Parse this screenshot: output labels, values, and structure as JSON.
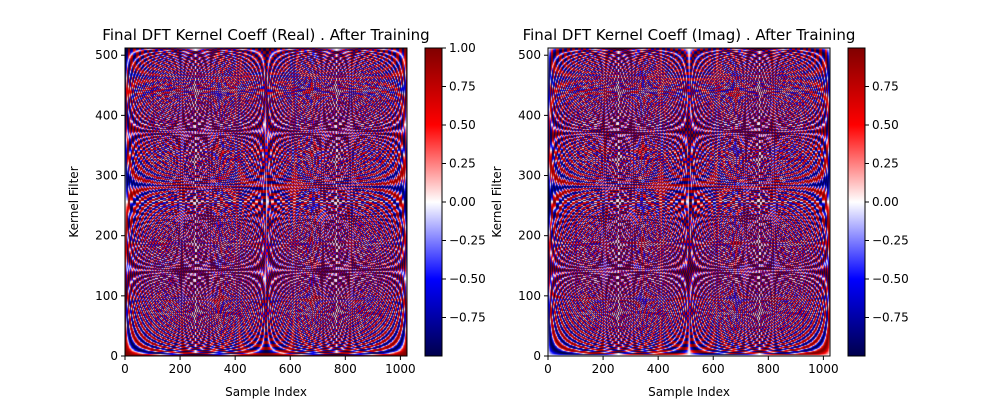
{
  "chart_data": [
    {
      "type": "heatmap",
      "title": "Final DFT Kernel Coeff (Real) . After Training",
      "xlabel": "Sample Index",
      "ylabel": "Kernel Filter",
      "xlim": [
        0,
        1024
      ],
      "ylim": [
        0,
        512
      ],
      "x_ticks": [
        "0",
        "200",
        "400",
        "600",
        "800",
        "1000"
      ],
      "y_ticks": [
        "0",
        "100",
        "200",
        "300",
        "400",
        "500"
      ],
      "colormap": "seismic",
      "colorbar": {
        "range": [
          -1.0,
          1.0
        ],
        "ticks": [
          "1.00",
          "0.75",
          "0.50",
          "0.25",
          "0.00",
          "−0.25",
          "−0.50",
          "−0.75"
        ]
      },
      "component": "real"
    },
    {
      "type": "heatmap",
      "title": "Final DFT Kernel Coeff (Imag) . After Training",
      "xlabel": "Sample Index",
      "ylabel": "Kernel Filter",
      "xlim": [
        0,
        1024
      ],
      "ylim": [
        0,
        512
      ],
      "x_ticks": [
        "0",
        "200",
        "400",
        "600",
        "800",
        "1000"
      ],
      "y_ticks": [
        "0",
        "100",
        "200",
        "300",
        "400",
        "500"
      ],
      "colormap": "seismic",
      "colorbar": {
        "range": [
          -1.0,
          1.0
        ],
        "ticks": [
          "0.75",
          "0.50",
          "0.25",
          "0.00",
          "−0.25",
          "−0.50",
          "−0.75"
        ]
      },
      "component": "imag"
    }
  ],
  "colors": {
    "cmap_low": "#00004c",
    "cmap_mid": "#ffffff",
    "cmap_high": "#800000"
  }
}
